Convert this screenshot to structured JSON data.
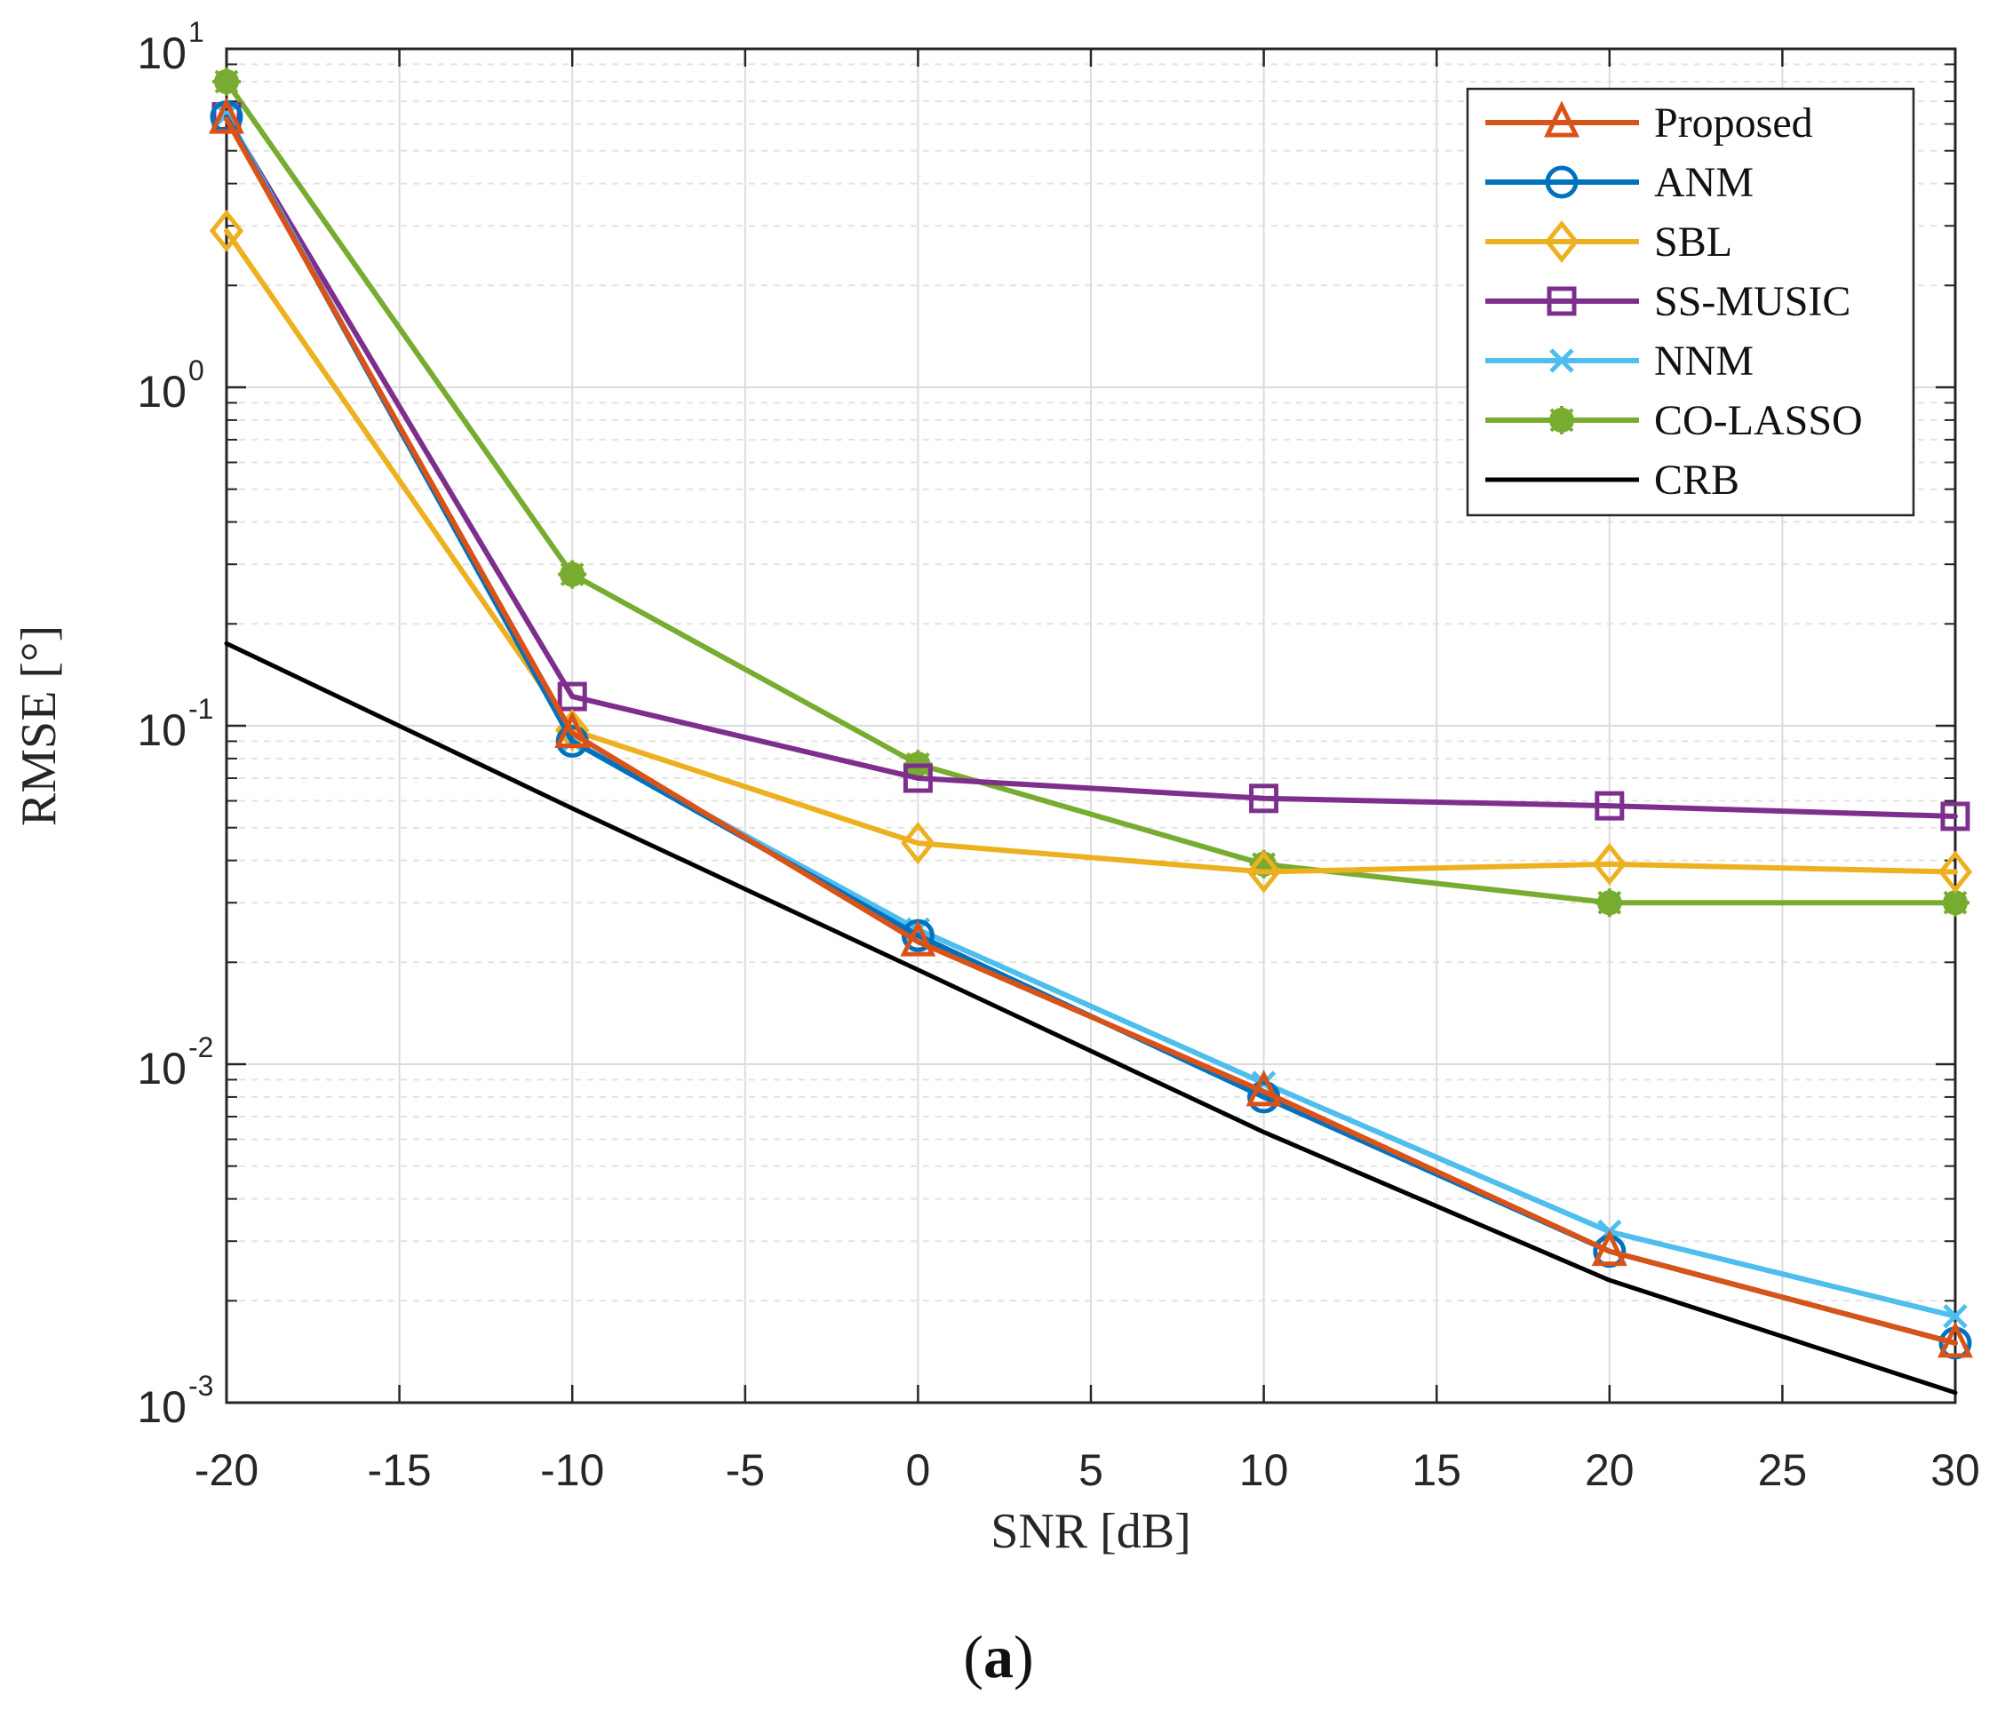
{
  "chart_data": {
    "type": "line",
    "xlabel": "SNR [dB]",
    "ylabel": "RMSE [°]",
    "yscale": "log",
    "xlim": [
      -20,
      30
    ],
    "ylim": [
      0.001,
      10
    ],
    "grid": true,
    "minor_grid": true,
    "legend_position": "top-right",
    "x_ticks": [
      "-20",
      "-15",
      "-10",
      "-5",
      "0",
      "5",
      "10",
      "15",
      "20",
      "25",
      "30"
    ],
    "y_ticks": [
      {
        "base": "10",
        "exp": "-3"
      },
      {
        "base": "10",
        "exp": "-2"
      },
      {
        "base": "10",
        "exp": "-1"
      },
      {
        "base": "10",
        "exp": "0"
      },
      {
        "base": "10",
        "exp": "1"
      }
    ],
    "x": [
      -20,
      -10,
      0,
      10,
      20,
      30
    ],
    "series": [
      {
        "name": "CO-LASSO",
        "color": "#77ac30",
        "marker": "star",
        "values": [
          8.0,
          0.28,
          0.077,
          0.039,
          0.03,
          0.03
        ]
      },
      {
        "name": "SS-MUSIC",
        "color": "#7e2f8e",
        "marker": "square",
        "values": [
          6.3,
          0.122,
          0.07,
          0.061,
          0.058,
          0.054
        ]
      },
      {
        "name": "SBL",
        "color": "#edb120",
        "marker": "diamond",
        "values": [
          2.9,
          0.097,
          0.045,
          0.037,
          0.039,
          0.037
        ]
      },
      {
        "name": "NNM",
        "color": "#4dbeee",
        "marker": "x",
        "values": [
          6.4,
          0.09,
          0.025,
          0.0088,
          0.0032,
          0.0018
        ]
      },
      {
        "name": "ANM",
        "color": "#0072bd",
        "marker": "circle",
        "values": [
          6.3,
          0.09,
          0.024,
          0.008,
          0.0028,
          0.0015
        ]
      },
      {
        "name": "Proposed",
        "color": "#d95319",
        "marker": "triangle",
        "values": [
          6.2,
          0.095,
          0.023,
          0.0083,
          0.0028,
          0.0015
        ]
      },
      {
        "name": "CRB",
        "color": "#000000",
        "marker": "none",
        "values": [
          0.175,
          0.057,
          0.019,
          0.0063,
          0.0023,
          0.00107
        ]
      }
    ],
    "legend_order": [
      "Proposed",
      "ANM",
      "SBL",
      "SS-MUSIC",
      "NNM",
      "CO-LASSO",
      "CRB"
    ]
  },
  "caption": {
    "open": "(",
    "letter": "a",
    "close": ")"
  }
}
